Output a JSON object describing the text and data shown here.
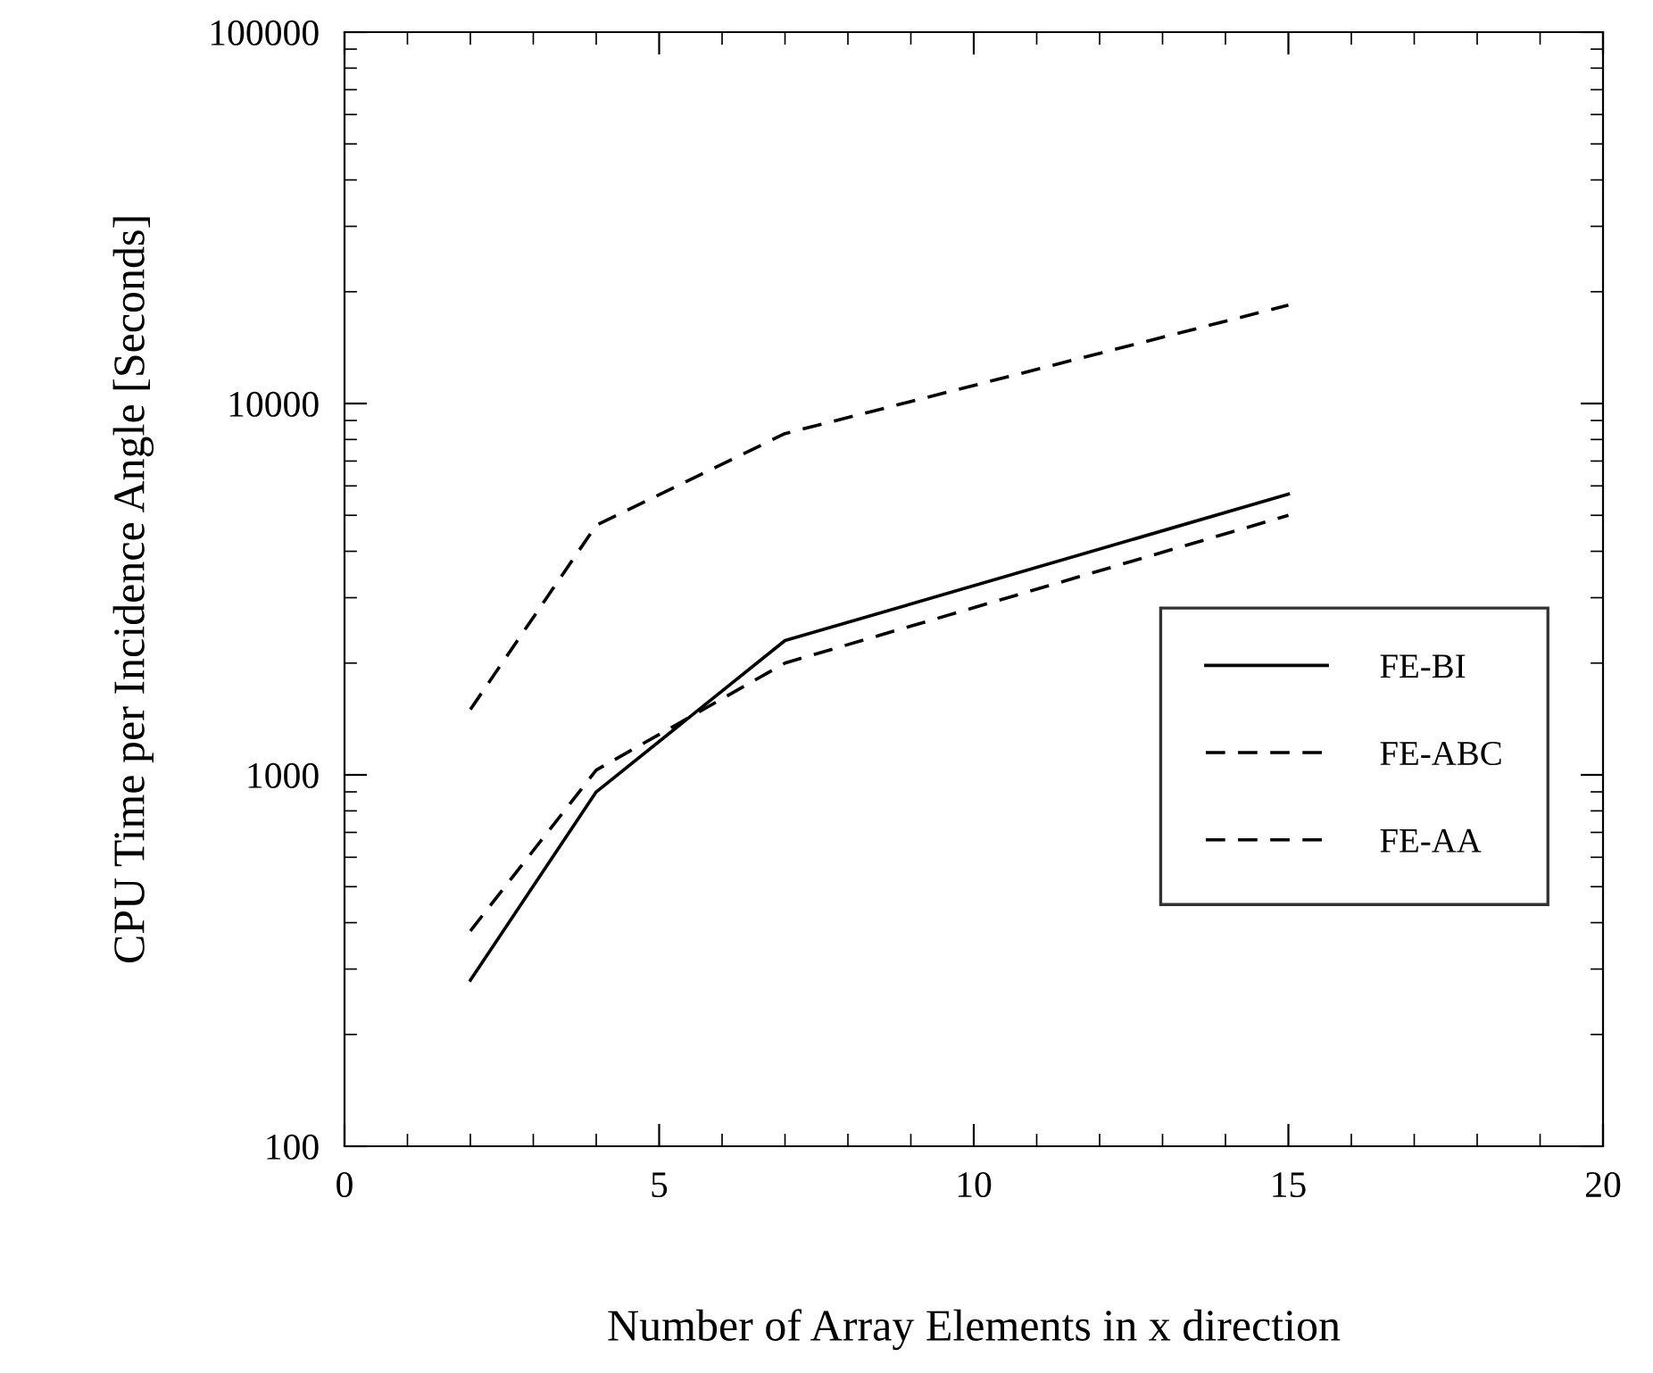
{
  "chart_data": {
    "type": "line",
    "xlabel": "Number of Array Elements in x direction",
    "ylabel": "CPU Time per Incidence Angle [Seconds]",
    "x": [
      2,
      4,
      7,
      15
    ],
    "series": [
      {
        "name": "FE-BI",
        "color": "#000000",
        "line_style": "solid",
        "values": [
          280,
          900,
          2300,
          5700
        ]
      },
      {
        "name": "FE-ABC",
        "color": "#000000",
        "line_style": "dashed",
        "values": [
          380,
          1030,
          2000,
          5000
        ]
      },
      {
        "name": "FE-AA",
        "color": "#000000",
        "line_style": "dashed",
        "values": [
          1500,
          4700,
          8300,
          18400
        ]
      }
    ],
    "log": "y",
    "xlim": [
      0,
      20
    ],
    "xticks": [
      0,
      5,
      10,
      15,
      20
    ],
    "ylim": [
      100,
      100000
    ],
    "yticks": [
      100,
      1000,
      10000,
      100000
    ],
    "legend": "right",
    "grid": false,
    "marker": "none"
  }
}
